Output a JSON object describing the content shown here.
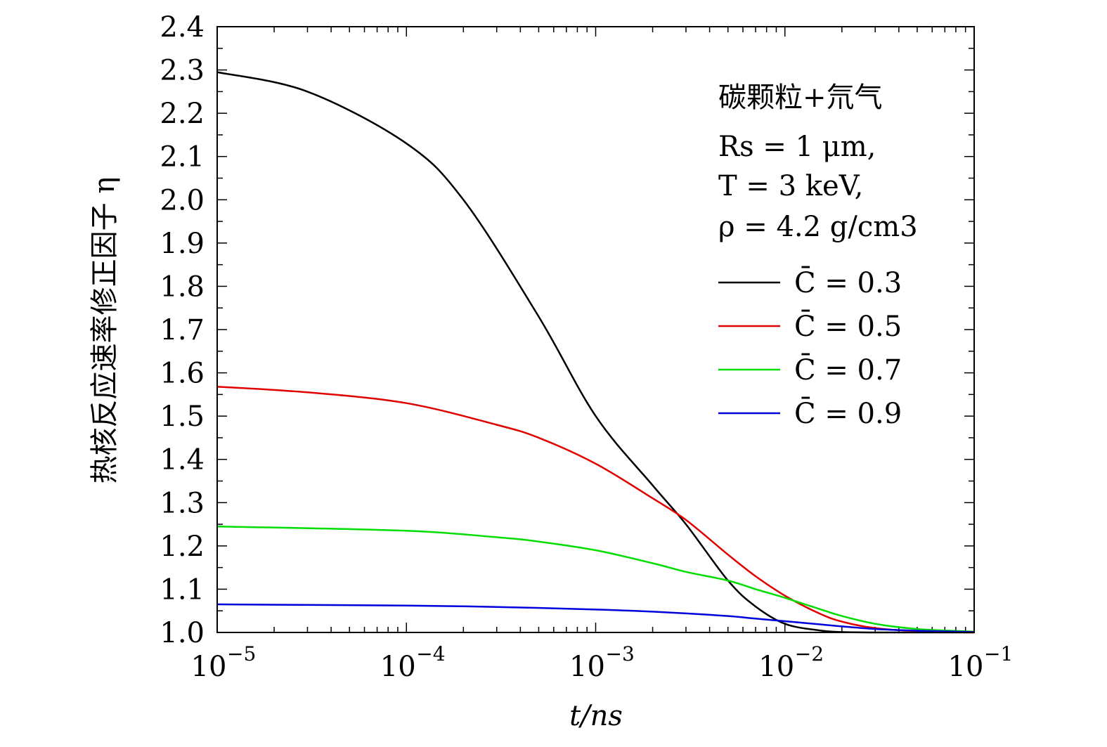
{
  "chart_data": {
    "type": "line",
    "x_scale": "log",
    "xlim": [
      1e-05,
      0.1
    ],
    "ylim": [
      1.0,
      2.4
    ],
    "xlabel": "t/ns",
    "ylabel": "热核反应速率修正因子 η",
    "x_ticks": [
      {
        "value": 1e-05,
        "base": "10",
        "exp": "−5"
      },
      {
        "value": 0.0001,
        "base": "10",
        "exp": "−4"
      },
      {
        "value": 0.001,
        "base": "10",
        "exp": "−3"
      },
      {
        "value": 0.01,
        "base": "10",
        "exp": "−2"
      },
      {
        "value": 0.1,
        "base": "10",
        "exp": "−1"
      }
    ],
    "y_ticks": [
      "1.0",
      "1.1",
      "1.2",
      "1.3",
      "1.4",
      "1.5",
      "1.6",
      "1.7",
      "1.8",
      "1.9",
      "2.0",
      "2.1",
      "2.2",
      "2.3",
      "2.4"
    ],
    "annotations": {
      "material": "碳颗粒+氘气",
      "rs": "Rs = 1 μm,",
      "temperature": "T = 3 keV,",
      "density": "ρ = 4.2 g/cm3"
    },
    "series": [
      {
        "name": "C̄ = 0.3",
        "color": "#000000",
        "x": [
          1e-05,
          3e-05,
          0.0001,
          0.0002,
          0.0005,
          0.001,
          0.002,
          0.003,
          0.005,
          0.007,
          0.01,
          0.015,
          0.02,
          0.03,
          0.05,
          0.1
        ],
        "y": [
          2.295,
          2.25,
          2.13,
          2.0,
          1.73,
          1.5,
          1.34,
          1.25,
          1.12,
          1.06,
          1.02,
          1.005,
          1.001,
          1.0,
          1.0,
          1.0
        ]
      },
      {
        "name": "C̄ = 0.5",
        "color": "#e00000",
        "x": [
          1e-05,
          3e-05,
          0.0001,
          0.0003,
          0.0005,
          0.001,
          0.002,
          0.003,
          0.005,
          0.007,
          0.01,
          0.015,
          0.02,
          0.03,
          0.05,
          0.1
        ],
        "y": [
          1.568,
          1.555,
          1.53,
          1.48,
          1.45,
          1.39,
          1.31,
          1.26,
          1.18,
          1.13,
          1.085,
          1.045,
          1.025,
          1.01,
          1.003,
          1.0
        ]
      },
      {
        "name": "C̄ = 0.7",
        "color": "#00dd00",
        "x": [
          1e-05,
          0.0001,
          0.0003,
          0.0005,
          0.001,
          0.002,
          0.003,
          0.005,
          0.007,
          0.01,
          0.015,
          0.02,
          0.03,
          0.05,
          0.1
        ],
        "y": [
          1.245,
          1.235,
          1.22,
          1.21,
          1.19,
          1.16,
          1.14,
          1.12,
          1.1,
          1.08,
          1.055,
          1.038,
          1.02,
          1.008,
          1.002
        ]
      },
      {
        "name": "C̄ = 0.9",
        "color": "#0000dd",
        "x": [
          1e-05,
          0.0001,
          0.0003,
          0.001,
          0.002,
          0.003,
          0.005,
          0.007,
          0.01,
          0.015,
          0.02,
          0.03,
          0.05,
          0.1
        ],
        "y": [
          1.065,
          1.062,
          1.059,
          1.053,
          1.048,
          1.044,
          1.038,
          1.032,
          1.026,
          1.019,
          1.014,
          1.008,
          1.004,
          1.001
        ]
      }
    ]
  }
}
